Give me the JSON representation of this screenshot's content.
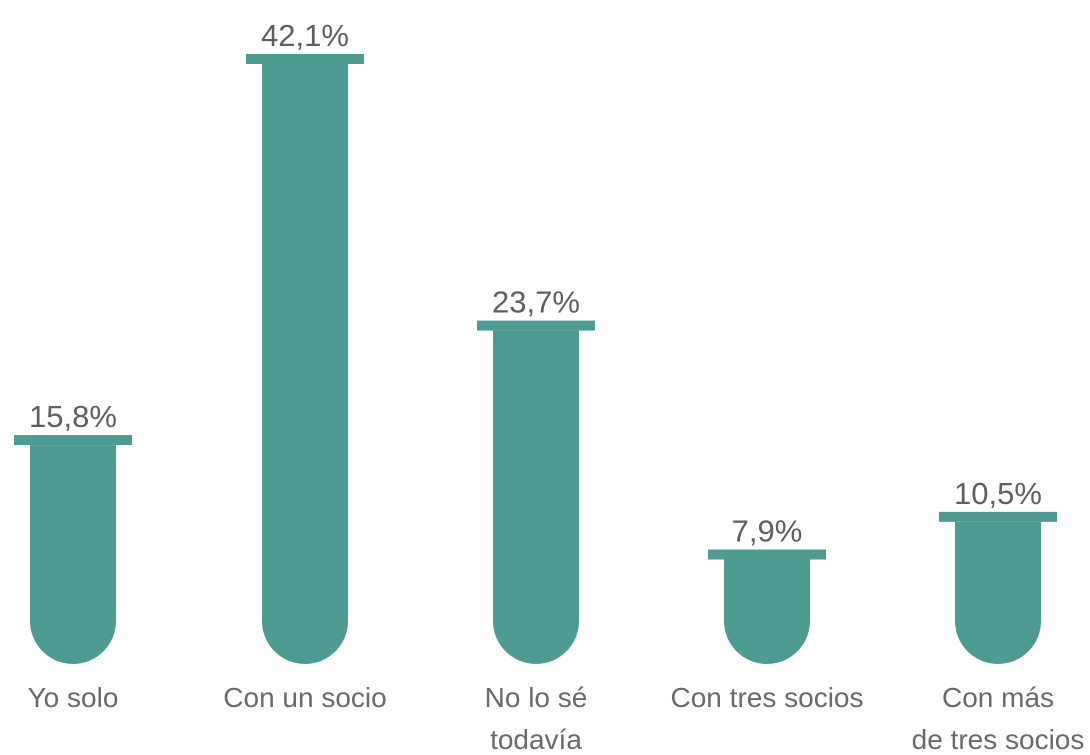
{
  "chart_data": {
    "type": "bar",
    "title": "",
    "xlabel": "",
    "ylabel": "",
    "ylim": [
      0,
      42.1
    ],
    "grid": false,
    "legend": "none",
    "bar_shape": "test-tube",
    "colors": {
      "bar": "#4e9b91",
      "value_text": "#5f5f5f",
      "category_text": "#6a6a6a"
    },
    "categories": [
      [
        "Yo solo"
      ],
      [
        "Con un socio"
      ],
      [
        "No lo sé",
        "todavía"
      ],
      [
        "Con tres socios"
      ],
      [
        "Con más",
        "de tres socios"
      ]
    ],
    "values": [
      15.8,
      42.1,
      23.7,
      7.9,
      10.5
    ],
    "value_labels": [
      "15,8%",
      "42,1%",
      "23,7%",
      "7,9%",
      "10,5%"
    ]
  }
}
